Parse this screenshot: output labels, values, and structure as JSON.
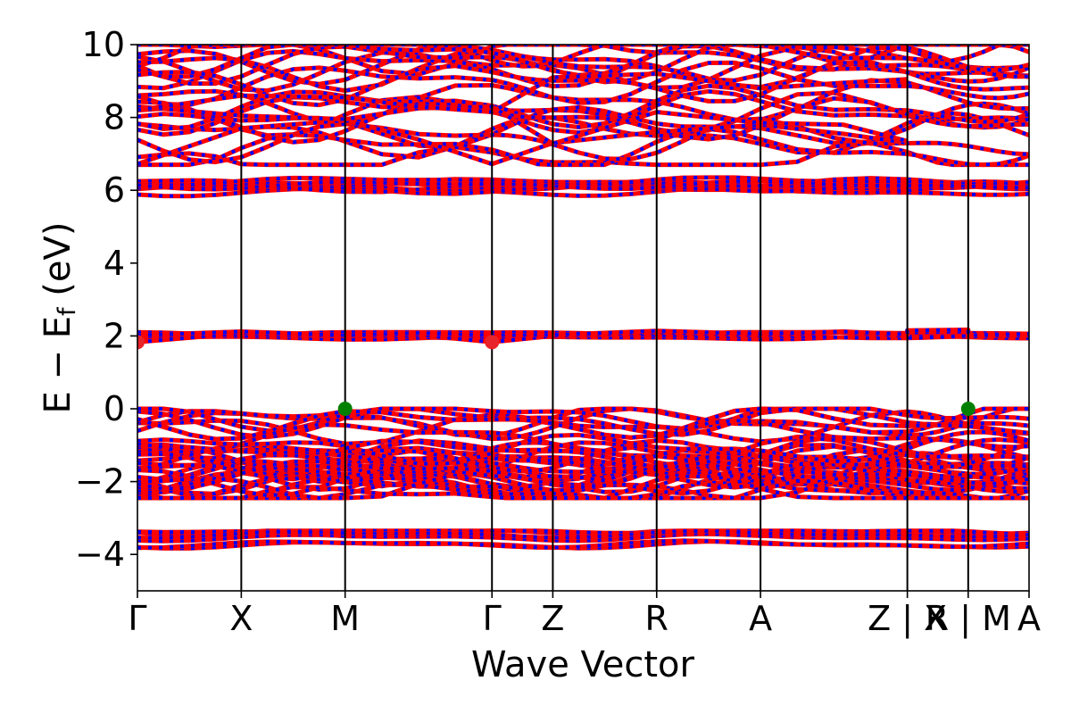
{
  "chart_data": {
    "type": "line",
    "xlabel": "Wave Vector",
    "ylabel": {
      "prefix": "E − E",
      "subscript": "f",
      "suffix": " (eV)"
    },
    "ylim": [
      -5,
      10
    ],
    "yticks": [
      {
        "value": 10,
        "label": "10"
      },
      {
        "value": 8,
        "label": "8"
      },
      {
        "value": 6,
        "label": "6"
      },
      {
        "value": 4,
        "label": "4"
      },
      {
        "value": 2,
        "label": "2"
      },
      {
        "value": 0,
        "label": "0"
      },
      {
        "value": -2,
        "label": "−2"
      },
      {
        "value": -4,
        "label": "−4"
      }
    ],
    "kpath": [
      {
        "label": "Γ",
        "position": 0.0
      },
      {
        "label": "X",
        "position": 1.0
      },
      {
        "label": "M",
        "position": 2.0
      },
      {
        "label": "Γ",
        "position": 3.414
      },
      {
        "label": "Z",
        "position": 4.0
      },
      {
        "label": "R",
        "position": 5.0
      },
      {
        "label": "A",
        "position": 6.0
      },
      {
        "label": "Z | X",
        "position": 7.414
      },
      {
        "label": "R | M",
        "position": 8.0
      },
      {
        "label": "A",
        "position": 8.586
      }
    ],
    "xlim": [
      0,
      8.586
    ],
    "grid": false,
    "colors": {
      "band_primary": "#ff0000",
      "band_secondary": "#0000ff",
      "cbm_marker": "#e8242a",
      "vbm_marker": "#008000",
      "vline": "#000000"
    },
    "band_manifolds": [
      {
        "name": "deep-valence",
        "range": [
          -3.9,
          -3.35
        ],
        "count": 6
      },
      {
        "name": "valence",
        "range": [
          -2.45,
          0.0
        ],
        "count": 34
      },
      {
        "name": "conduction-1",
        "range": [
          1.8,
          2.1
        ],
        "count": 3
      },
      {
        "name": "conduction-2",
        "range": [
          5.7,
          6.35
        ],
        "count": 8
      },
      {
        "name": "conduction-3",
        "range": [
          6.7,
          10.0
        ],
        "count": 20
      }
    ],
    "bands": [
      {
        "name": "cb1-lower",
        "points": [
          [
            0,
            1.83
          ],
          [
            1,
            2.07
          ],
          [
            2,
            2.0
          ],
          [
            2.7,
            2.03
          ],
          [
            3.414,
            1.83
          ],
          [
            4,
            2.0
          ],
          [
            5,
            2.1
          ],
          [
            6,
            2.02
          ],
          [
            6.8,
            2.1
          ],
          [
            7.414,
            2.0
          ],
          [
            7.414,
            2.09
          ],
          [
            8.0,
            2.12
          ],
          [
            8.0,
            1.98
          ],
          [
            8.586,
            2.02
          ]
        ]
      },
      {
        "name": "cb1-upper",
        "points": [
          [
            0,
            2.02
          ],
          [
            1,
            2.12
          ],
          [
            2,
            2.02
          ],
          [
            2.7,
            2.08
          ],
          [
            3.414,
            2.02
          ],
          [
            4,
            2.03
          ],
          [
            5,
            2.14
          ],
          [
            6,
            2.06
          ],
          [
            6.8,
            2.12
          ],
          [
            7.414,
            2.04
          ],
          [
            7.414,
            2.15
          ],
          [
            8.0,
            2.17
          ],
          [
            8.0,
            2.02
          ],
          [
            8.586,
            2.06
          ]
        ]
      },
      {
        "name": "cb3-dispersive-low",
        "points": [
          [
            0,
            6.72
          ],
          [
            1,
            7.7
          ],
          [
            2,
            7.92
          ],
          [
            2.7,
            7.4
          ],
          [
            3.414,
            6.72
          ],
          [
            4,
            7.3
          ],
          [
            5,
            7.6
          ],
          [
            6,
            7.8
          ],
          [
            6.8,
            7.55
          ],
          [
            7.414,
            7.3
          ]
        ]
      },
      {
        "name": "cb3-dispersive-mid",
        "points": [
          [
            0,
            8.3
          ],
          [
            1,
            8.05
          ],
          [
            2,
            7.95
          ],
          [
            2.7,
            8.25
          ],
          [
            3.414,
            8.3
          ],
          [
            4,
            7.28
          ],
          [
            5,
            8.15
          ],
          [
            6,
            7.85
          ],
          [
            6.8,
            7.8
          ],
          [
            7.414,
            7.35
          ]
        ]
      },
      {
        "name": "cb3-dispersive-high",
        "points": [
          [
            0,
            8.2
          ],
          [
            1,
            8.6
          ],
          [
            2,
            8.55
          ],
          [
            2.7,
            8.3
          ],
          [
            3.414,
            8.15
          ],
          [
            4,
            9.1
          ],
          [
            5,
            9.2
          ],
          [
            6,
            8.8
          ],
          [
            6.8,
            8.95
          ],
          [
            7.414,
            9.05
          ]
        ]
      }
    ],
    "extrema": [
      {
        "type": "cbm",
        "k": 0.0,
        "energy": 1.83
      },
      {
        "type": "cbm",
        "k": 3.414,
        "energy": 1.83
      },
      {
        "type": "vbm",
        "k": 2.0,
        "energy": 0.0
      },
      {
        "type": "vbm",
        "k": 8.0,
        "energy": 0.0
      }
    ]
  }
}
